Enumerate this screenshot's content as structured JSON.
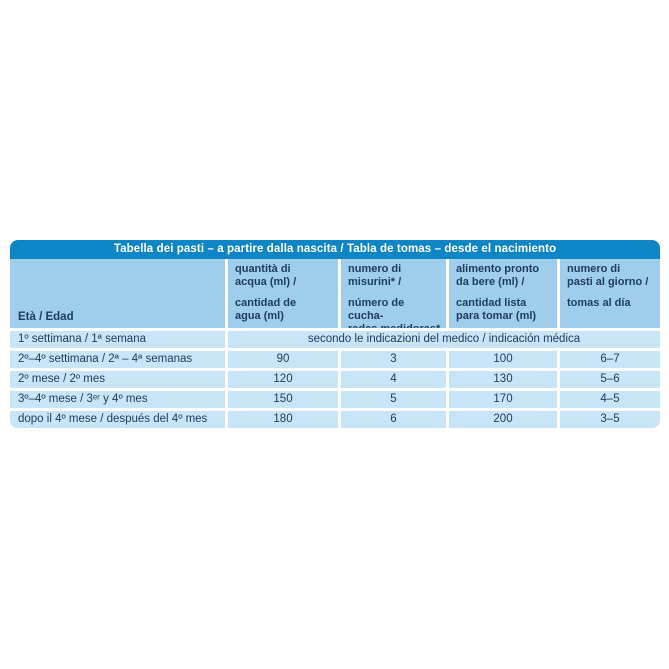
{
  "colors": {
    "title_bar_bg": "#0e86c6",
    "title_text": "#ffffff",
    "header_bg": "#9fceec",
    "row_bg": "#c8e4f7",
    "text_dark": "#1d3a5f",
    "page_bg": "#ffffff"
  },
  "chart_data": {
    "type": "table",
    "title": "Tabella dei pasti – a partire dalla nascita / Tabla de tomas – desde el nacimiento",
    "age_header": "Età / Edad",
    "col_headers": [
      {
        "it": "quantità di\nacqua (ml) /",
        "es": "cantidad de\nagua (ml)"
      },
      {
        "it": "numero di\nmisurini* /",
        "es": "número de cucha-\nradas medidoras*"
      },
      {
        "it": "alimento pronto\nda bere (ml) /",
        "es": "cantidad lista\npara tomar (ml)"
      },
      {
        "it": "numero di\npasti al giorno /",
        "es": "tomas al día"
      }
    ],
    "rows": [
      {
        "age": "1º settimana / 1ª semana",
        "note": "secondo le indicazioni del medico / indicación médica"
      },
      {
        "age": "2º–4º settimana / 2ª – 4ª semanas",
        "water_ml": "90",
        "scoops": "3",
        "ready_ml": "100",
        "meals_per_day": "6–7"
      },
      {
        "age": "2º mese / 2º mes",
        "water_ml": "120",
        "scoops": "4",
        "ready_ml": "130",
        "meals_per_day": "5–6"
      },
      {
        "age": "3º–4º mese / 3ᵉʳ y 4º mes",
        "water_ml": "150",
        "scoops": "5",
        "ready_ml": "170",
        "meals_per_day": "4–5"
      },
      {
        "age": "dopo il 4º mese / después del 4º mes",
        "water_ml": "180",
        "scoops": "6",
        "ready_ml": "200",
        "meals_per_day": "3–5"
      }
    ]
  }
}
